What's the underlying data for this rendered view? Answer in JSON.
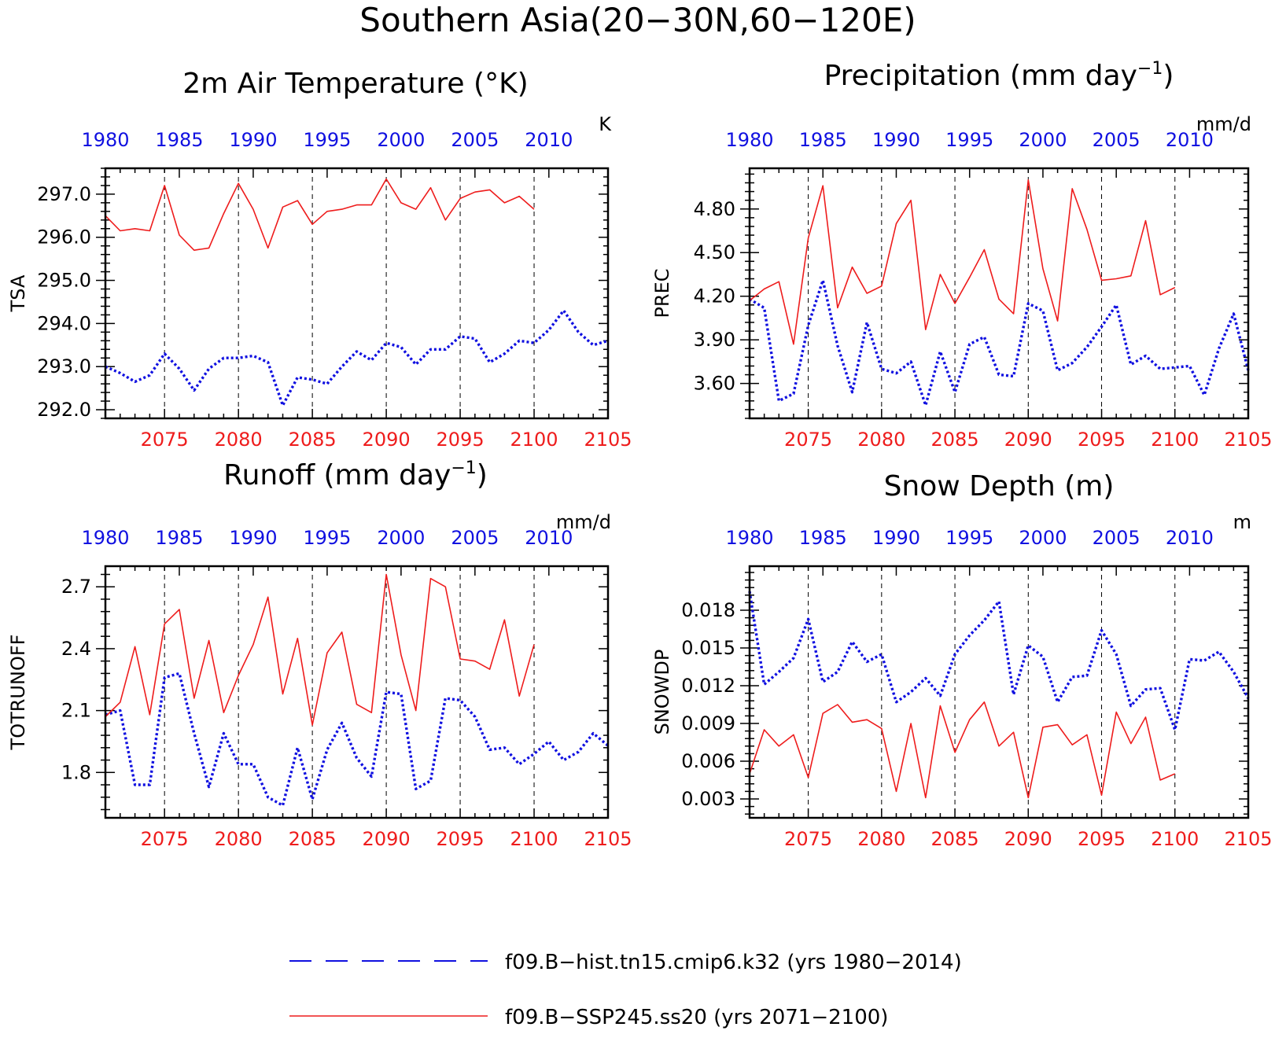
{
  "figure": {
    "title": "Southern Asia(20−30N,60−120E)"
  },
  "colors": {
    "hist": "#1010e0",
    "ssp": "#ee1c1c",
    "axis": "#000000"
  },
  "legend": {
    "items": [
      {
        "label": "f09.B−hist.tn15.cmip6.k32 (yrs 1980−2014)",
        "style": "dashed",
        "color": "#1010e0"
      },
      {
        "label": "f09.B−SSP245.ss20 (yrs 2071−2100)",
        "style": "solid",
        "color": "#ee1c1c"
      }
    ]
  },
  "chart_data": [
    {
      "type": "line",
      "title": "2m Air Temperature (°K)",
      "ylabel": "TSA",
      "unit": "K",
      "ylim": [
        291.8,
        297.6
      ],
      "yticks": [
        "292.0",
        "293.0",
        "294.0",
        "295.0",
        "296.0",
        "297.0"
      ],
      "x_top": {
        "range": [
          1980,
          2014
        ],
        "ticks": [
          "1980",
          "1985",
          "1990",
          "1995",
          "2000",
          "2005",
          "2010"
        ]
      },
      "x_bottom": {
        "range": [
          2071,
          2105
        ],
        "ticks": [
          "2075",
          "2080",
          "2085",
          "2090",
          "2095",
          "2100",
          "2105"
        ]
      },
      "series": [
        {
          "name": "f09.B−hist.tn15.cmip6.k32",
          "axis": "top",
          "x_start": 1980,
          "values": [
            293.0,
            292.85,
            292.65,
            292.8,
            293.3,
            292.95,
            292.45,
            292.95,
            293.2,
            293.2,
            293.25,
            293.1,
            292.1,
            292.75,
            292.7,
            292.6,
            293.0,
            293.35,
            293.15,
            293.55,
            293.45,
            293.05,
            293.4,
            293.4,
            293.7,
            293.65,
            293.1,
            293.3,
            293.6,
            293.55,
            293.85,
            294.3,
            293.8,
            293.5,
            293.6
          ]
        },
        {
          "name": "f09.B−SSP245.ss20",
          "axis": "bottom",
          "x_start": 2071,
          "values": [
            296.5,
            296.15,
            296.2,
            296.15,
            297.2,
            296.05,
            295.7,
            295.75,
            296.55,
            297.25,
            296.65,
            295.75,
            296.7,
            296.85,
            296.3,
            296.6,
            296.65,
            296.75,
            296.75,
            297.35,
            296.8,
            296.65,
            297.15,
            296.4,
            296.9,
            297.05,
            297.1,
            296.8,
            296.95,
            296.65
          ]
        }
      ]
    },
    {
      "type": "line",
      "title": "Precipitation (mm day",
      "title_sup": "−1",
      "title_end": ")",
      "ylabel": "PREC",
      "unit": "mm/d",
      "ylim": [
        3.36,
        5.08
      ],
      "yticks": [
        "3.60",
        "3.90",
        "4.20",
        "4.50",
        "4.80"
      ],
      "x_top": {
        "range": [
          1980,
          2014
        ],
        "ticks": [
          "1980",
          "1985",
          "1990",
          "1995",
          "2000",
          "2005",
          "2010"
        ]
      },
      "x_bottom": {
        "range": [
          2071,
          2105
        ],
        "ticks": [
          "2075",
          "2080",
          "2085",
          "2090",
          "2095",
          "2100",
          "2105"
        ]
      },
      "series": [
        {
          "name": "f09.B−hist.tn15.cmip6.k32",
          "axis": "top",
          "x_start": 1980,
          "values": [
            4.18,
            4.12,
            3.48,
            3.53,
            4.0,
            4.31,
            3.86,
            3.54,
            4.02,
            3.7,
            3.67,
            3.75,
            3.45,
            3.82,
            3.54,
            3.87,
            3.92,
            3.66,
            3.65,
            4.15,
            4.1,
            3.69,
            3.74,
            3.85,
            3.99,
            4.14,
            3.73,
            3.79,
            3.7,
            3.71,
            3.72,
            3.52,
            3.84,
            4.08,
            3.69
          ]
        },
        {
          "name": "f09.B−SSP245.ss20",
          "axis": "bottom",
          "x_start": 2071,
          "values": [
            4.17,
            4.25,
            4.3,
            3.87,
            4.6,
            4.96,
            4.12,
            4.4,
            4.22,
            4.27,
            4.7,
            4.86,
            3.97,
            4.35,
            4.15,
            4.33,
            4.52,
            4.18,
            4.08,
            5.0,
            4.39,
            4.03,
            4.94,
            4.66,
            4.31,
            4.32,
            4.34,
            4.72,
            4.21,
            4.26
          ]
        }
      ]
    },
    {
      "type": "line",
      "title": "Runoff (mm day",
      "title_sup": "−1",
      "title_end": ")",
      "ylabel": "TOTRUNOFF",
      "unit": "mm/d",
      "ylim": [
        1.58,
        2.8
      ],
      "yticks": [
        "1.8",
        "2.1",
        "2.4",
        "2.7"
      ],
      "x_top": {
        "range": [
          1980,
          2014
        ],
        "ticks": [
          "1980",
          "1985",
          "1990",
          "1995",
          "2000",
          "2005",
          "2010"
        ]
      },
      "x_bottom": {
        "range": [
          2071,
          2105
        ],
        "ticks": [
          "2075",
          "2080",
          "2085",
          "2090",
          "2095",
          "2100",
          "2105"
        ]
      },
      "series": [
        {
          "name": "f09.B−hist.tn15.cmip6.k32",
          "axis": "top",
          "x_start": 1980,
          "values": [
            2.08,
            2.1,
            1.74,
            1.74,
            2.26,
            2.28,
            1.99,
            1.73,
            1.99,
            1.84,
            1.84,
            1.68,
            1.64,
            1.92,
            1.67,
            1.91,
            2.04,
            1.87,
            1.78,
            2.19,
            2.18,
            1.72,
            1.76,
            2.16,
            2.15,
            2.07,
            1.91,
            1.92,
            1.84,
            1.89,
            1.95,
            1.86,
            1.9,
            1.99,
            1.93
          ]
        },
        {
          "name": "f09.B−SSP245.ss20",
          "axis": "bottom",
          "x_start": 2071,
          "values": [
            2.07,
            2.14,
            2.41,
            2.08,
            2.52,
            2.59,
            2.16,
            2.44,
            2.09,
            2.27,
            2.42,
            2.65,
            2.18,
            2.45,
            2.03,
            2.38,
            2.48,
            2.13,
            2.09,
            2.76,
            2.37,
            2.1,
            2.74,
            2.7,
            2.35,
            2.34,
            2.3,
            2.54,
            2.17,
            2.42
          ]
        }
      ]
    },
    {
      "type": "line",
      "title": "Snow Depth (m)",
      "ylabel": "SNOWDP",
      "unit": "m",
      "ylim": [
        0.0015,
        0.0215
      ],
      "yticks": [
        "0.003",
        "0.006",
        "0.009",
        "0.012",
        "0.015",
        "0.018"
      ],
      "x_top": {
        "range": [
          1980,
          2014
        ],
        "ticks": [
          "1980",
          "1985",
          "1990",
          "1995",
          "2000",
          "2005",
          "2010"
        ]
      },
      "x_bottom": {
        "range": [
          2071,
          2105
        ],
        "ticks": [
          "2075",
          "2080",
          "2085",
          "2090",
          "2095",
          "2100",
          "2105"
        ]
      },
      "series": [
        {
          "name": "f09.B−hist.tn15.cmip6.k32",
          "axis": "top",
          "x_start": 1980,
          "values": [
            0.0195,
            0.0121,
            0.0131,
            0.0142,
            0.0173,
            0.0123,
            0.0131,
            0.0155,
            0.0139,
            0.0145,
            0.0107,
            0.0115,
            0.0126,
            0.0112,
            0.0145,
            0.016,
            0.0172,
            0.0187,
            0.0113,
            0.0152,
            0.0143,
            0.0107,
            0.0127,
            0.0128,
            0.0164,
            0.0145,
            0.0104,
            0.0117,
            0.0118,
            0.0085,
            0.0141,
            0.014,
            0.0147,
            0.0131,
            0.011
          ]
        },
        {
          "name": "f09.B−SSP245.ss20",
          "axis": "bottom",
          "x_start": 2071,
          "values": [
            0.005,
            0.0085,
            0.0072,
            0.0081,
            0.0047,
            0.0098,
            0.0105,
            0.0091,
            0.0093,
            0.0086,
            0.0036,
            0.009,
            0.0031,
            0.0104,
            0.0067,
            0.0093,
            0.0107,
            0.0072,
            0.0083,
            0.0031,
            0.0087,
            0.0089,
            0.0073,
            0.0081,
            0.0033,
            0.0099,
            0.0074,
            0.0095,
            0.0045,
            0.005
          ]
        }
      ]
    }
  ]
}
